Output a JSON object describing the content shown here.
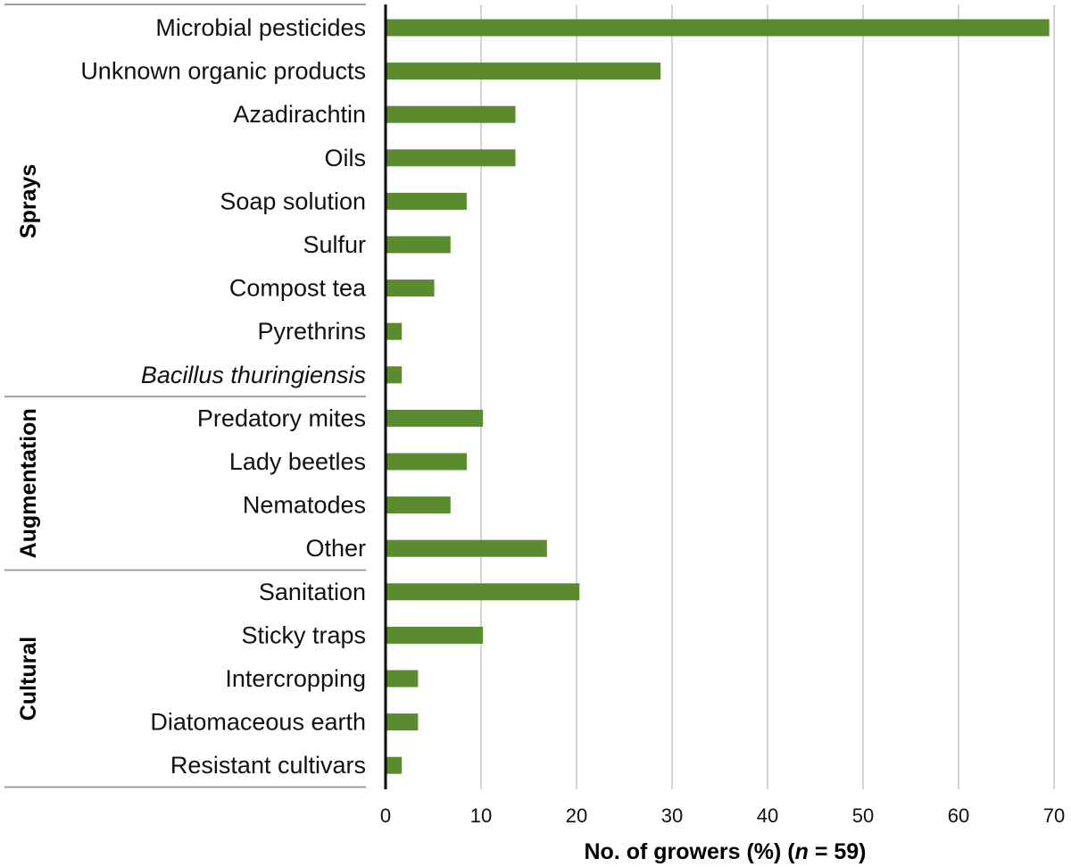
{
  "chart_data": {
    "type": "bar",
    "orientation": "horizontal",
    "bar_color": "#5a8c2f",
    "grid_color": "#b8b8b8",
    "separator_color": "#a89e96",
    "grid": true,
    "xlim": [
      0,
      70
    ],
    "xticks": [
      "0",
      "10",
      "20",
      "30",
      "40",
      "50",
      "60",
      "70"
    ],
    "xlabel": {
      "prefix": "No. of growers (%) (",
      "n_symbol": "n",
      "suffix": " = 59)"
    },
    "groups": [
      {
        "name": "Sprays",
        "categories": [
          {
            "label": "Microbial pesticides",
            "value": 69.5,
            "italic": false
          },
          {
            "label": "Unknown organic products",
            "value": 28.8,
            "italic": false
          },
          {
            "label": "Azadirachtin",
            "value": 13.6,
            "italic": false
          },
          {
            "label": "Oils",
            "value": 13.6,
            "italic": false
          },
          {
            "label": "Soap solution",
            "value": 8.5,
            "italic": false
          },
          {
            "label": "Sulfur",
            "value": 6.8,
            "italic": false
          },
          {
            "label": "Compost tea",
            "value": 5.1,
            "italic": false
          },
          {
            "label": "Pyrethrins",
            "value": 1.7,
            "italic": false
          },
          {
            "label": "Bacillus thuringiensis",
            "value": 1.7,
            "italic": true
          }
        ]
      },
      {
        "name": "Augmentation",
        "categories": [
          {
            "label": "Predatory mites",
            "value": 10.2,
            "italic": false
          },
          {
            "label": "Lady beetles",
            "value": 8.5,
            "italic": false
          },
          {
            "label": "Nematodes",
            "value": 6.8,
            "italic": false
          },
          {
            "label": "Other",
            "value": 16.9,
            "italic": false
          }
        ]
      },
      {
        "name": "Cultural",
        "categories": [
          {
            "label": "Sanitation",
            "value": 20.3,
            "italic": false
          },
          {
            "label": "Sticky traps",
            "value": 10.2,
            "italic": false
          },
          {
            "label": "Intercropping",
            "value": 3.4,
            "italic": false
          },
          {
            "label": "Diatomaceous earth",
            "value": 3.4,
            "italic": false
          },
          {
            "label": "Resistant cultivars",
            "value": 1.7,
            "italic": false
          }
        ]
      }
    ]
  }
}
